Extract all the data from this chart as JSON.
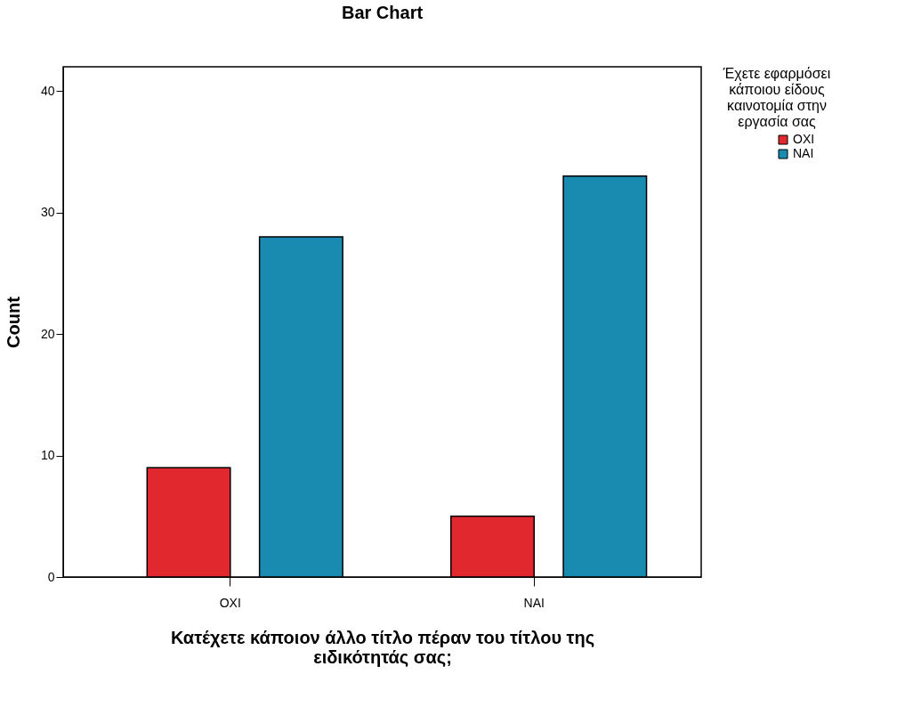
{
  "chart_data": {
    "type": "bar",
    "title": "Bar Chart",
    "xlabel": "Κατέχετε κάποιον άλλο τίτλο πέραν του τίτλου της ειδικότητάς σας;",
    "ylabel": "Count",
    "legend_title": "Έχετε εφαρμόσει κάποιου είδους καινοτομία στην εργασία σας",
    "categories": [
      "ΟΧΙ",
      "ΝΑΙ"
    ],
    "series": [
      {
        "name": "ΟΧΙ",
        "color": "#e0282e",
        "values": [
          9,
          5
        ]
      },
      {
        "name": "ΝΑΙ",
        "color": "#1a8bb0",
        "values": [
          28,
          33
        ]
      }
    ],
    "ylim": [
      0,
      42
    ],
    "yticks": [
      0,
      10,
      20,
      30,
      40
    ],
    "grid": false,
    "legend": "top right"
  }
}
